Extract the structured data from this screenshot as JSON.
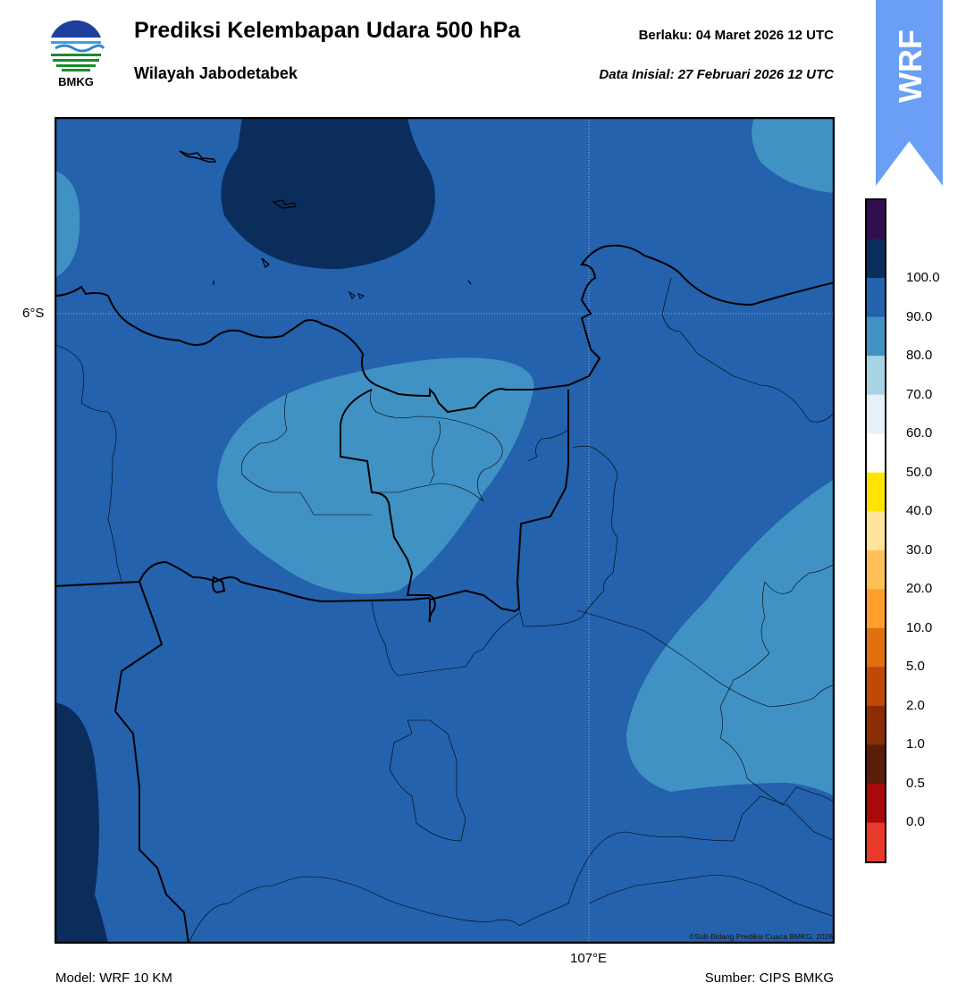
{
  "header": {
    "title": "Prediksi Kelembapan Udara 500 hPa",
    "subtitle": "Wilayah Jabodetabek",
    "valid_label": "Berlaku:  04 Maret 2026 12 UTC",
    "init_label": "Data Inisial:  27 Februari 2026 12 UTC"
  },
  "logo": {
    "text": "BMKG",
    "icon": "bmkg-logo"
  },
  "badge": {
    "text": "WRF",
    "color": "#6b9ef5"
  },
  "map": {
    "lat_label": "6°S",
    "lon_label": "107°E",
    "copyright": "©Sub Bidang Prediksi Cuaca BMKG, 2026",
    "background_color": "#2462ad"
  },
  "colorbar": {
    "labels": [
      "100.0",
      "90.0",
      "80.0",
      "70.0",
      "60.0",
      "50.0",
      "40.0",
      "30.0",
      "20.0",
      "10.0",
      "5.0",
      "2.0",
      "1.0",
      "0.5",
      "0.0"
    ],
    "colors": [
      "#2f0f4f",
      "#0b2d5c",
      "#2462ad",
      "#4192c4",
      "#a8d4e6",
      "#e6f0f8",
      "#ffffff",
      "#ffe400",
      "#ffe49a",
      "#ffc058",
      "#ff9f2a",
      "#e07010",
      "#c04808",
      "#8a2c06",
      "#5a1d0a",
      "#a80a0a",
      "#e8392a"
    ]
  },
  "footer": {
    "model": "Model: WRF 10 KM",
    "source": "Sumber: CIPS BMKG"
  }
}
